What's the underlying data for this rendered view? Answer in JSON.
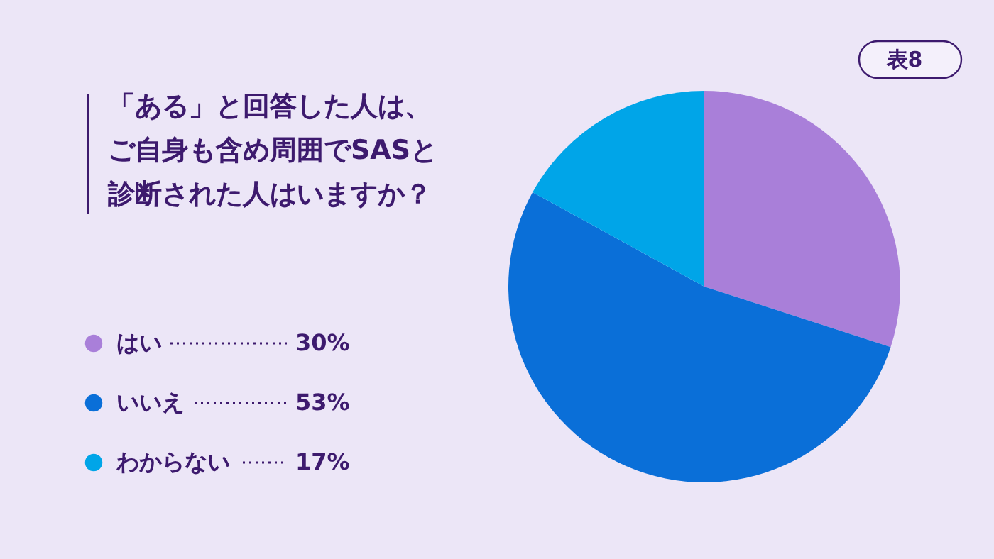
{
  "chart_data": {
    "type": "pie",
    "title": "「ある」と回答した人は、ご自身も含め周囲でSASと診断された人はいますか？",
    "annotations": [
      "表8"
    ],
    "categories": [
      "はい",
      "いいえ",
      "わからない"
    ],
    "values": [
      30,
      53,
      17
    ],
    "colors": [
      "#a97fd9",
      "#0a6fd8",
      "#00a5e8"
    ],
    "value_labels": [
      "30%",
      "53%",
      "17%"
    ],
    "legend": "left"
  }
}
